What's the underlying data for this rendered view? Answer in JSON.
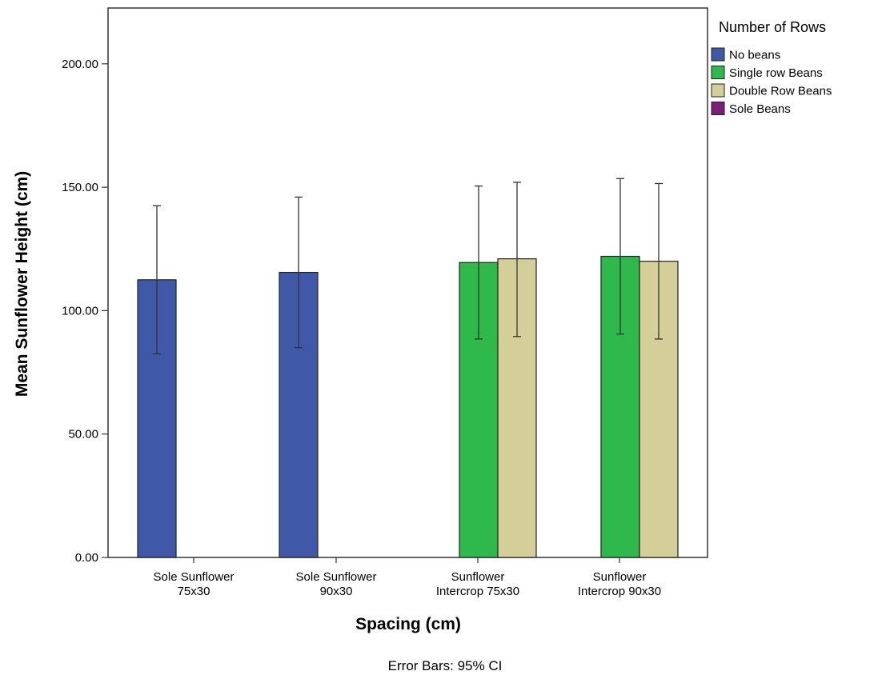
{
  "chart_data": {
    "type": "bar",
    "xlabel": "Spacing (cm)",
    "ylabel": "Mean Sunflower Height (cm)",
    "ylim": [
      0,
      220
    ],
    "yticks": [
      "0.00",
      "50.00",
      "100.00",
      "150.00",
      "200.00"
    ],
    "ytick_values": [
      0,
      50,
      100,
      150,
      200
    ],
    "categories": [
      [
        "Sole Sunflower",
        "75x30"
      ],
      [
        "Sole Sunflower",
        "90x30"
      ],
      [
        "Sunflower",
        "Intercrop 75x30"
      ],
      [
        "Sunflower",
        "Intercrop 90x30"
      ]
    ],
    "legend": {
      "title": "Number of Rows",
      "position": "right",
      "items": [
        {
          "label": "No beans",
          "color": "#3f58a8"
        },
        {
          "label": "Single row Beans",
          "color": "#2fb94a"
        },
        {
          "label": "Double Row Beans",
          "color": "#d4cf98"
        },
        {
          "label": "Sole Beans",
          "color": "#7b1e7a"
        }
      ]
    },
    "series": [
      {
        "name": "No beans",
        "color": "#3f58a8",
        "values": [
          112.5,
          115.5,
          null,
          null
        ],
        "ci_low": [
          82.5,
          85.0,
          null,
          null
        ],
        "ci_high": [
          142.5,
          146.0,
          null,
          null
        ]
      },
      {
        "name": "Single row Beans",
        "color": "#2fb94a",
        "values": [
          null,
          null,
          119.5,
          122.0
        ],
        "ci_low": [
          null,
          null,
          88.5,
          90.5
        ],
        "ci_high": [
          null,
          null,
          150.5,
          153.5
        ]
      },
      {
        "name": "Double Row Beans",
        "color": "#d4cf98",
        "values": [
          null,
          null,
          121.0,
          120.0
        ],
        "ci_low": [
          null,
          null,
          89.5,
          88.5
        ],
        "ci_high": [
          null,
          null,
          152.0,
          151.5
        ]
      },
      {
        "name": "Sole Beans",
        "color": "#7b1e7a",
        "values": [
          null,
          null,
          null,
          null
        ]
      }
    ],
    "footnote": "Error Bars: 95% CI"
  }
}
